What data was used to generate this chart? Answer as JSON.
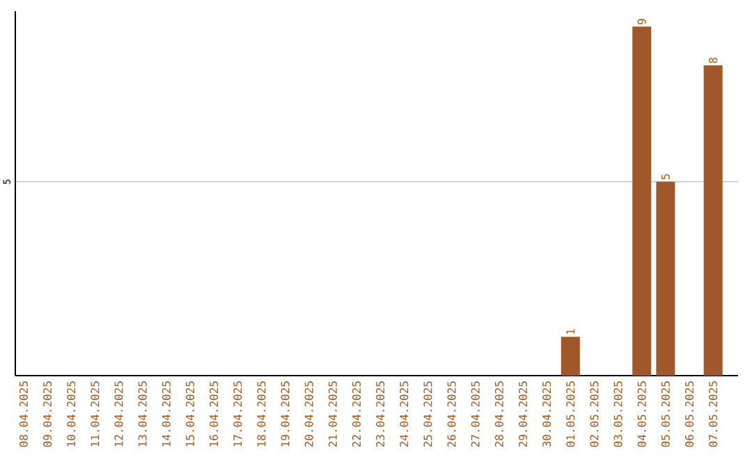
{
  "chart_data": {
    "type": "bar",
    "categories": [
      "08.04.2025",
      "09.04.2025",
      "10.04.2025",
      "11.04.2025",
      "12.04.2025",
      "13.04.2025",
      "14.04.2025",
      "15.04.2025",
      "16.04.2025",
      "17.04.2025",
      "18.04.2025",
      "19.04.2025",
      "20.04.2025",
      "21.04.2025",
      "22.04.2025",
      "23.04.2025",
      "24.04.2025",
      "25.04.2025",
      "26.04.2025",
      "27.04.2025",
      "28.04.2025",
      "29.04.2025",
      "30.04.2025",
      "01.05.2025",
      "02.05.2025",
      "03.05.2025",
      "04.05.2025",
      "05.05.2025",
      "06.05.2025",
      "07.05.2025"
    ],
    "values": [
      null,
      null,
      null,
      null,
      null,
      null,
      null,
      null,
      null,
      null,
      null,
      null,
      null,
      null,
      null,
      null,
      null,
      null,
      null,
      null,
      null,
      null,
      null,
      1,
      null,
      null,
      9,
      5,
      null,
      8
    ],
    "color": "#a0582a",
    "ylim": [
      0,
      9.4
    ],
    "yticks": [
      5
    ],
    "grid": "y",
    "data_labels": true
  }
}
